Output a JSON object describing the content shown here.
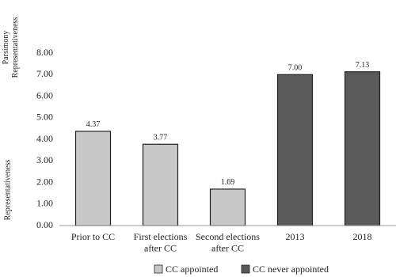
{
  "chart_data": {
    "type": "bar",
    "y_label_top": "Parsimony\nRepresentativeness",
    "y_label": "Representativeness",
    "categories": [
      "Prior to CC",
      "First elections\nafter CC",
      "Second elections\nafter CC",
      "2013",
      "2018"
    ],
    "series": [
      {
        "name": "CC appointed",
        "color": "#c8c8c8",
        "values": [
          4.37,
          3.77,
          1.69,
          null,
          null
        ],
        "value_labels": [
          "4.37",
          "3.77",
          "1.69",
          null,
          null
        ]
      },
      {
        "name": "CC never appointed",
        "color": "#5a5a5a",
        "values": [
          null,
          null,
          null,
          7.0,
          7.13
        ],
        "value_labels": [
          null,
          null,
          null,
          "7.00",
          "7.13"
        ]
      }
    ],
    "ylim": [
      0,
      8
    ],
    "yticks": [
      {
        "value": 0,
        "label": "0.00"
      },
      {
        "value": 1,
        "label": "1.00"
      },
      {
        "value": 2,
        "label": "2.00"
      },
      {
        "value": 3,
        "label": "3.00"
      },
      {
        "value": 4,
        "label": "4.00"
      },
      {
        "value": 5,
        "label": "5.00"
      },
      {
        "value": 6,
        "label": "6.00"
      },
      {
        "value": 7,
        "label": "7.00"
      },
      {
        "value": 8,
        "label": "8.00"
      }
    ],
    "grid": false
  }
}
